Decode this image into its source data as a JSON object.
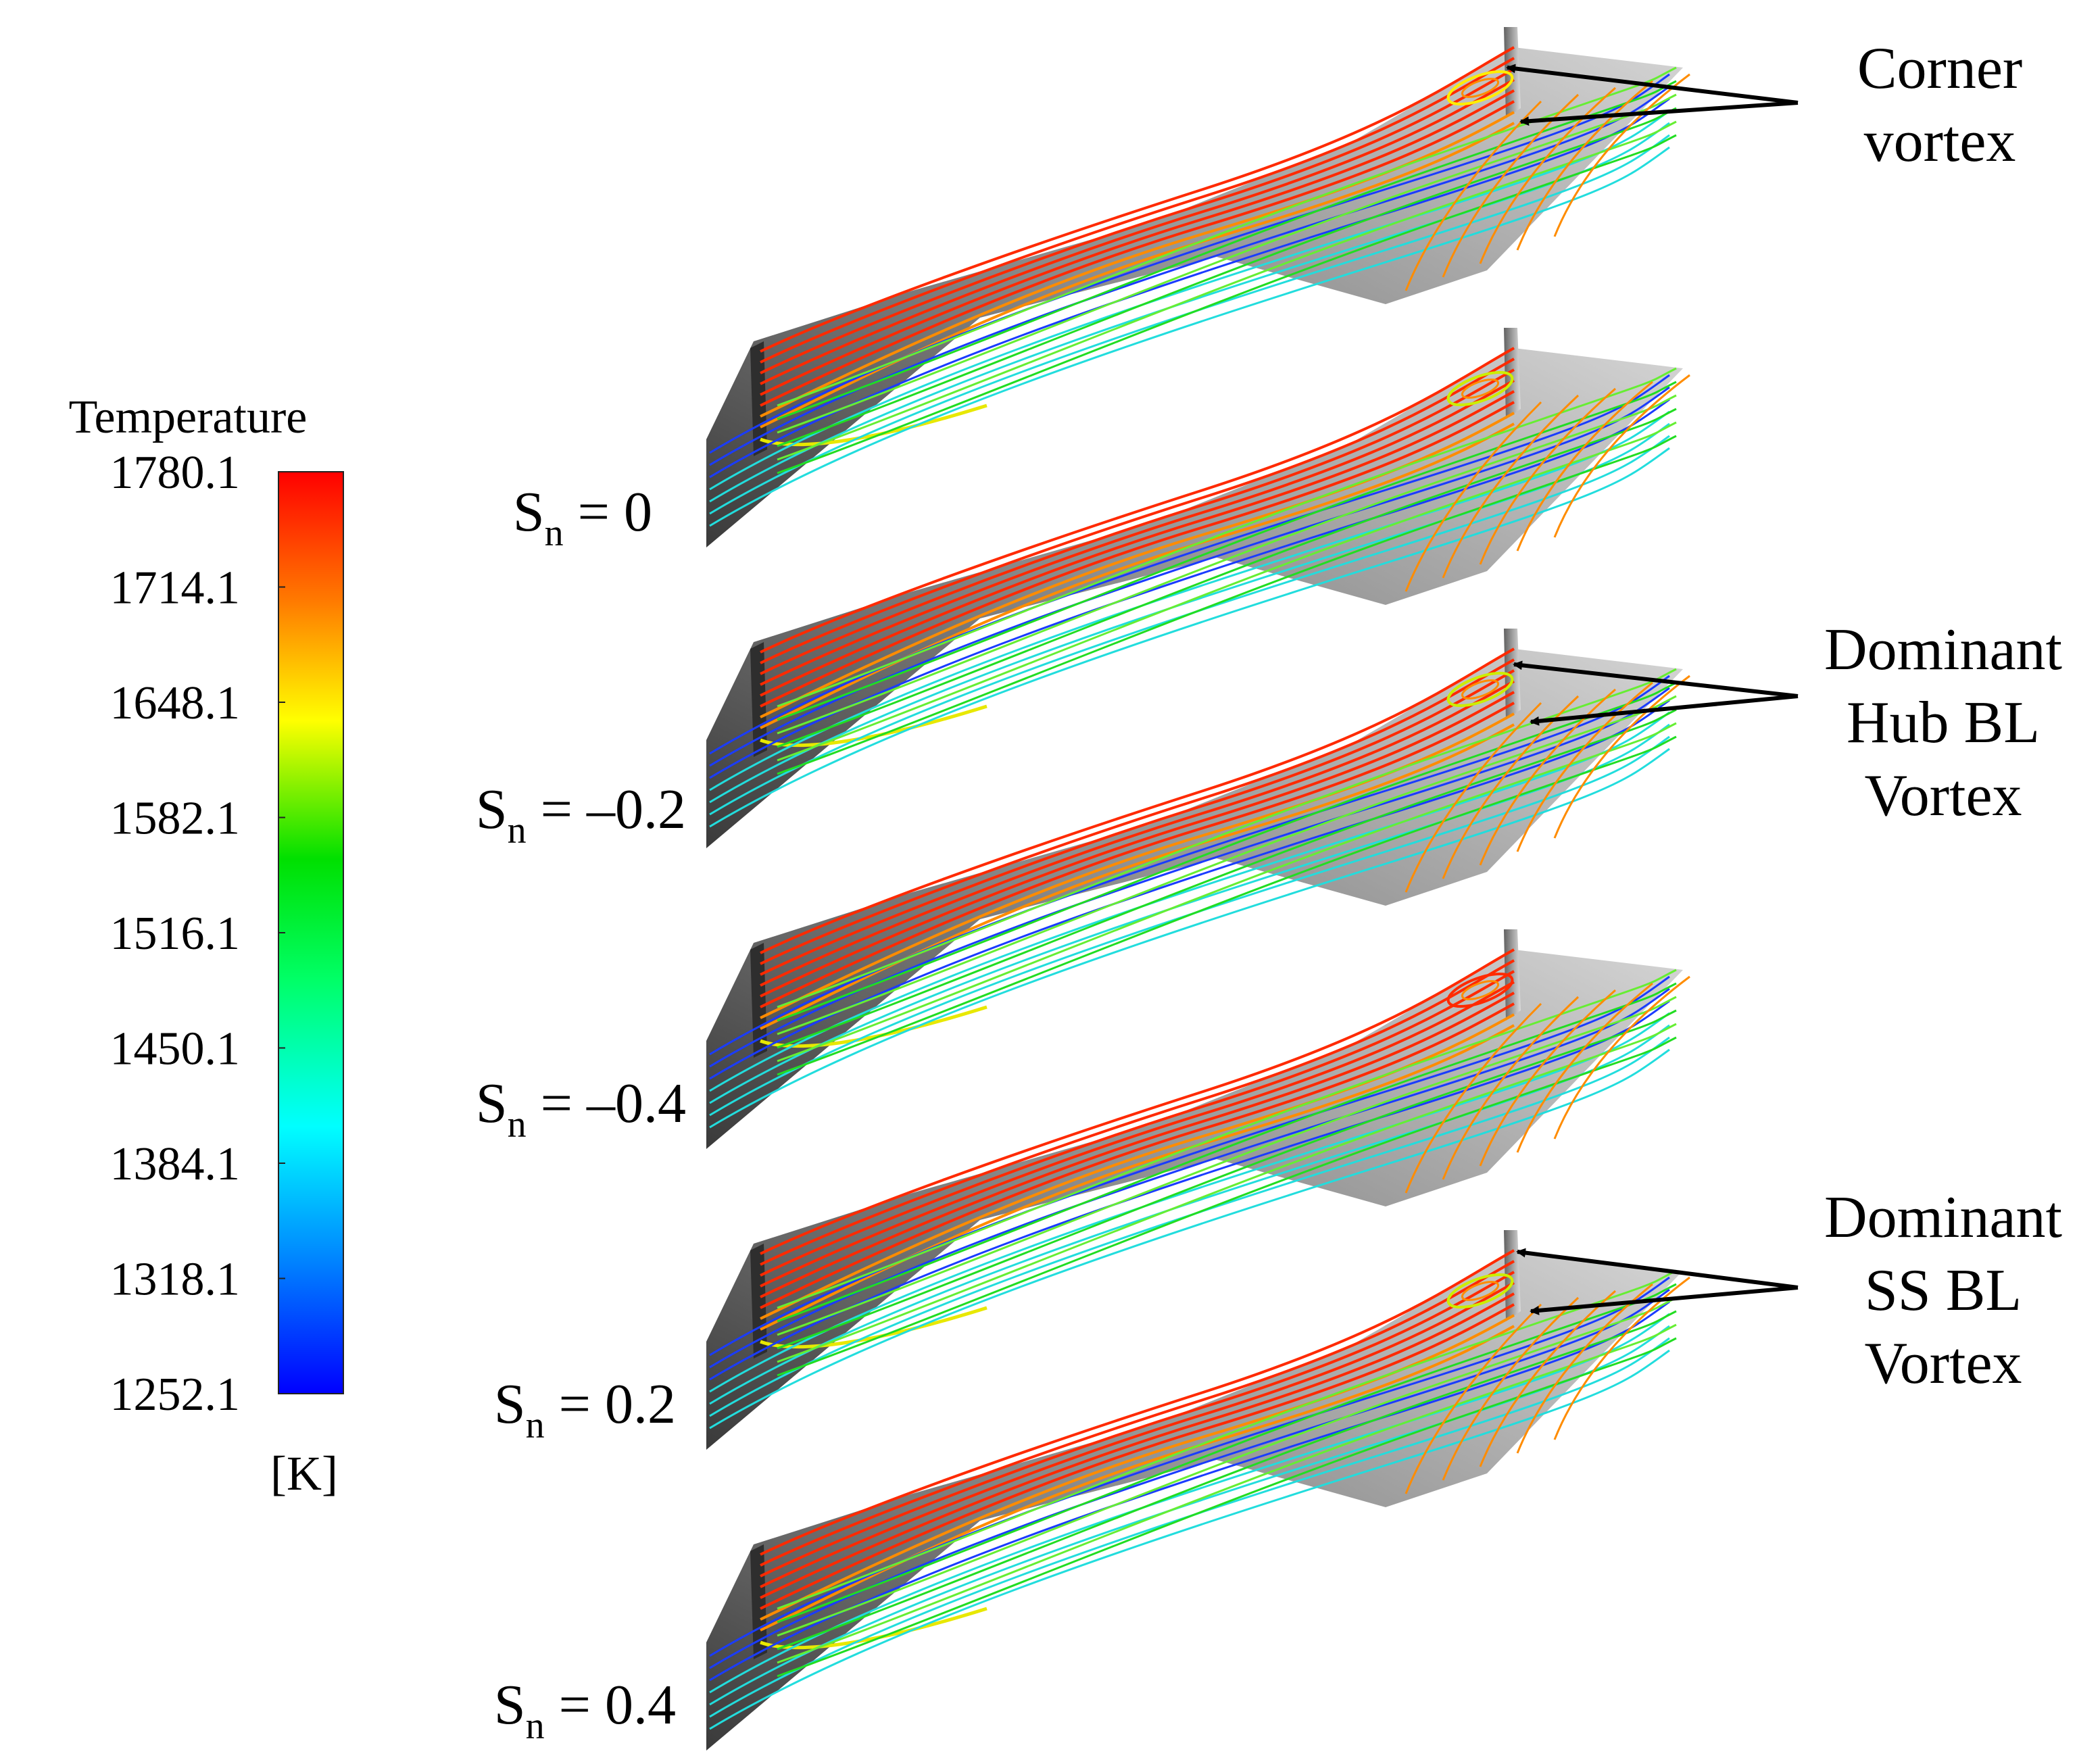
{
  "colorbar": {
    "title": "Temperature",
    "unit": "[K]",
    "ticks": [
      "1780.1",
      "1714.1",
      "1648.1",
      "1582.1",
      "1516.1",
      "1450.1",
      "1384.1",
      "1318.1",
      "1252.1"
    ],
    "colors": [
      "#ff0000",
      "#ff7a00",
      "#ffff00",
      "#00e000",
      "#00ff66",
      "#00ffff",
      "#0080ff",
      "#0000ff"
    ]
  },
  "panels": [
    {
      "label_main": "S",
      "label_sub": "n",
      "label_rest": " = 0"
    },
    {
      "label_main": "S",
      "label_sub": "n",
      "label_rest": " = –0.2"
    },
    {
      "label_main": "S",
      "label_sub": "n",
      "label_rest": " = –0.4"
    },
    {
      "label_main": "S",
      "label_sub": "n",
      "label_rest": " = 0.2"
    },
    {
      "label_main": "S",
      "label_sub": "n",
      "label_rest": " = 0.4"
    }
  ],
  "annotations": [
    {
      "lines": [
        "Corner",
        "vortex"
      ]
    },
    {
      "lines": [
        "Dominant",
        "Hub BL",
        "Vortex"
      ]
    },
    {
      "lines": [
        "Dominant",
        "SS BL",
        "Vortex"
      ]
    }
  ],
  "colors": {
    "surface_dark": "#555555",
    "surface_light": "#c8c8c8",
    "streak_red": "#ff2a00",
    "streak_orange": "#ff8c00",
    "streak_green": "#22dd22",
    "streak_cyan": "#22dddd",
    "streak_blue": "#1a3cff"
  }
}
